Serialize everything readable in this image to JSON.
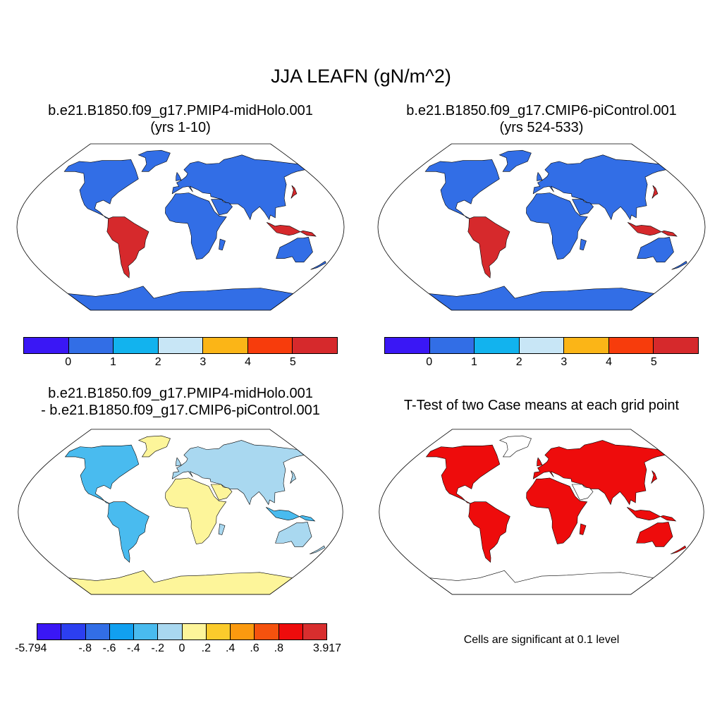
{
  "title": "JJA LEAFN (gN/m^2)",
  "panels": [
    {
      "title_line1": "b.e21.B1850.f09_g17.PMIP4-midHolo.001",
      "title_line2": "(yrs 1-10)"
    },
    {
      "title_line1": "b.e21.B1850.f09_g17.CMIP6-piControl.001",
      "title_line2": "(yrs 524-533)"
    },
    {
      "title_line1": "b.e21.B1850.f09_g17.PMIP4-midHolo.001",
      "title_line2": "- b.e21.B1850.f09_g17.CMIP6-piControl.001"
    },
    {
      "title_line1": "T-Test of two Case means at each grid point"
    }
  ],
  "colorbars": {
    "abs": {
      "colors": [
        "#3a17f5",
        "#326ee6",
        "#12b3ee",
        "#c8e6f6",
        "#fbb517",
        "#f73c0c",
        "#d6292c"
      ],
      "labels": [
        "0",
        "1",
        "2",
        "3",
        "4",
        "5"
      ]
    },
    "diff": {
      "colors": [
        "#3a17f5",
        "#2c3ff0",
        "#326ee6",
        "#11a0f0",
        "#49bbef",
        "#a9d8f0",
        "#fdf59a",
        "#fbcb2c",
        "#fb9a0f",
        "#f5520e",
        "#ee0c0c",
        "#d82e2e"
      ],
      "labels": [
        "-5.794",
        "-.8",
        "-.6",
        "-.4",
        "-.2",
        "0",
        ".2",
        ".4",
        ".6",
        ".8",
        "3.917"
      ]
    }
  },
  "significance_note": "Cells are significant at 0.1 level"
}
